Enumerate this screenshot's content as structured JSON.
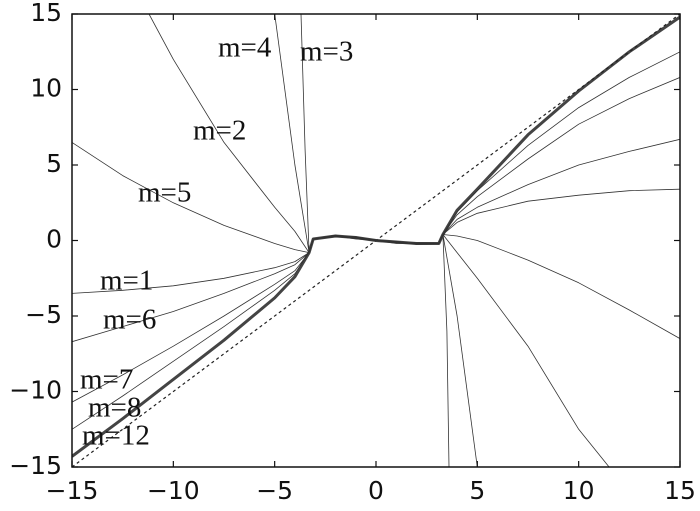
{
  "chart_data": {
    "type": "line",
    "xlim": [
      -15,
      15
    ],
    "ylim": [
      -15,
      15
    ],
    "xticks": [
      {
        "value": -15,
        "label": "−15"
      },
      {
        "value": -10,
        "label": "−10"
      },
      {
        "value": -5,
        "label": "−5"
      },
      0,
      5,
      10,
      15
    ],
    "yticks": [
      {
        "value": -15,
        "label": "−15"
      },
      {
        "value": -10,
        "label": "−10"
      },
      {
        "value": -5,
        "label": "−5"
      },
      0,
      5,
      10,
      15
    ],
    "grid": false,
    "series": [
      {
        "name": "m=12",
        "color": "#444",
        "linewidth": 3,
        "linestyle": "solid",
        "x": [
          -15,
          -12.5,
          -10,
          -7.5,
          -5,
          -4,
          -3.3,
          -3.1,
          -2,
          -1,
          0,
          1,
          2,
          3.1,
          3.3,
          4,
          5,
          7.5,
          10,
          12.5,
          15
        ],
        "values": [
          -14.3,
          -11.8,
          -9.2,
          -6.6,
          -3.8,
          -2.4,
          -0.8,
          0.1,
          0.3,
          0.2,
          0,
          -0.1,
          -0.2,
          -0.2,
          0.4,
          2.0,
          3.4,
          7.0,
          9.9,
          12.5,
          14.8
        ]
      },
      {
        "color": "#222",
        "linewidth": 1.2,
        "linestyle": "dashed",
        "x": [
          -15,
          15
        ],
        "values": [
          -15,
          15
        ]
      },
      {
        "name": "m=8",
        "color": "#333",
        "linewidth": 0.8,
        "linestyle": "solid",
        "x": [
          -15,
          -12.5,
          -10,
          -7.5,
          -5,
          -4,
          -3.3,
          -3.1,
          -2,
          -1,
          0,
          1,
          2,
          3.1,
          3.3,
          4,
          5,
          7.5,
          10,
          12.5,
          15
        ],
        "values": [
          -12.5,
          -10.3,
          -8.0,
          -5.7,
          -3.3,
          -2.2,
          -0.8,
          0.1,
          0.35,
          0.15,
          0,
          -0.05,
          -0.25,
          -0.2,
          0.4,
          1.9,
          3.3,
          6.3,
          8.8,
          10.8,
          12.5
        ]
      },
      {
        "name": "m=7",
        "color": "#333",
        "linewidth": 0.8,
        "linestyle": "solid",
        "x": [
          -15,
          -12.5,
          -10,
          -7.5,
          -5,
          -4,
          -3.3,
          -3.1,
          -2,
          -1,
          0,
          1,
          2,
          3.1,
          3.3,
          4,
          5,
          7.5,
          10,
          12.5,
          15
        ],
        "values": [
          -10.7,
          -8.9,
          -7.0,
          -5.0,
          -2.9,
          -2.0,
          -0.8,
          0.1,
          0.25,
          0.25,
          0,
          -0.15,
          -0.15,
          -0.2,
          0.4,
          1.7,
          2.9,
          5.4,
          7.7,
          9.4,
          10.8
        ]
      },
      {
        "name": "m=6",
        "color": "#333",
        "linewidth": 0.8,
        "linestyle": "solid",
        "x": [
          -15,
          -12.5,
          -10,
          -7.5,
          -5,
          -4,
          -3.3,
          -3.1,
          -2,
          -1,
          0,
          1,
          2,
          3.1,
          3.3,
          4,
          5,
          7.5,
          10,
          12.5,
          15
        ],
        "values": [
          -6.7,
          -5.7,
          -4.7,
          -3.5,
          -2.2,
          -1.6,
          -0.8,
          0.1,
          0.3,
          0.2,
          0.05,
          -0.1,
          -0.2,
          -0.2,
          0.4,
          1.4,
          2.2,
          3.7,
          5.0,
          5.9,
          6.7
        ]
      },
      {
        "name": "m=1",
        "color": "#333",
        "linewidth": 0.8,
        "linestyle": "solid",
        "x": [
          -15,
          -12.5,
          -10,
          -7.5,
          -5,
          -4,
          -3.3,
          -3.1,
          -2,
          -1,
          0,
          1,
          2,
          3.1,
          3.3,
          4,
          5,
          7.5,
          10,
          12.5,
          15
        ],
        "values": [
          -3.5,
          -3.3,
          -3.0,
          -2.5,
          -1.8,
          -1.4,
          -0.8,
          0.1,
          0.3,
          0.2,
          0,
          -0.1,
          -0.2,
          -0.2,
          0.4,
          1.2,
          1.8,
          2.6,
          3.0,
          3.3,
          3.4
        ]
      },
      {
        "name": "m=5",
        "color": "#333",
        "linewidth": 0.8,
        "linestyle": "solid",
        "x": [
          -15,
          -12.5,
          -10,
          -7.5,
          -5,
          -4,
          -3.3,
          -3.1,
          -2,
          -1,
          0,
          1,
          2,
          3.1,
          3.3,
          4,
          5,
          7.5,
          10,
          12.5,
          15
        ],
        "values": [
          6.5,
          4.3,
          2.5,
          1.0,
          -0.2,
          -0.6,
          -0.8,
          0.1,
          0.3,
          0.1,
          0,
          -0.2,
          -0.2,
          -0.2,
          0.4,
          0.3,
          0,
          -1.3,
          -2.8,
          -4.6,
          -6.5
        ]
      },
      {
        "name": "m=2",
        "color": "#333",
        "linewidth": 0.8,
        "linestyle": "solid",
        "x": [
          -11.2,
          -10,
          -7.5,
          -5,
          -4,
          -3.3,
          -3.1,
          -2,
          -1,
          0,
          1,
          2,
          3.1,
          3.3,
          4,
          5,
          7.5,
          10,
          11.5
        ],
        "values": [
          15,
          12,
          6.5,
          2.2,
          0.6,
          -0.8,
          0.1,
          0.3,
          0.2,
          0,
          -0.1,
          -0.2,
          -0.2,
          0.4,
          -0.8,
          -2.5,
          -7,
          -12.5,
          -15
        ]
      },
      {
        "name": "m=4",
        "color": "#333",
        "linewidth": 0.8,
        "linestyle": "solid",
        "x": [
          -5,
          -4,
          -3.3,
          -3.1,
          -2,
          -1,
          0,
          1,
          2,
          3.1,
          3.3,
          4,
          5
        ],
        "values": [
          15,
          5,
          -0.8,
          0.1,
          0.3,
          0.2,
          0,
          -0.1,
          -0.2,
          -0.2,
          0.4,
          -5,
          -15
        ]
      },
      {
        "name": "m=3",
        "color": "#333",
        "linewidth": 0.8,
        "linestyle": "solid",
        "x": [
          -3.7,
          -3.5,
          -3.3,
          -3.1,
          -2,
          -1,
          0,
          1,
          2,
          3.1,
          3.3,
          3.5,
          3.6
        ],
        "values": [
          15,
          6,
          -0.8,
          0.1,
          0.3,
          0.2,
          0,
          -0.1,
          -0.2,
          -0.2,
          0.4,
          -6,
          -15
        ]
      }
    ]
  }
}
